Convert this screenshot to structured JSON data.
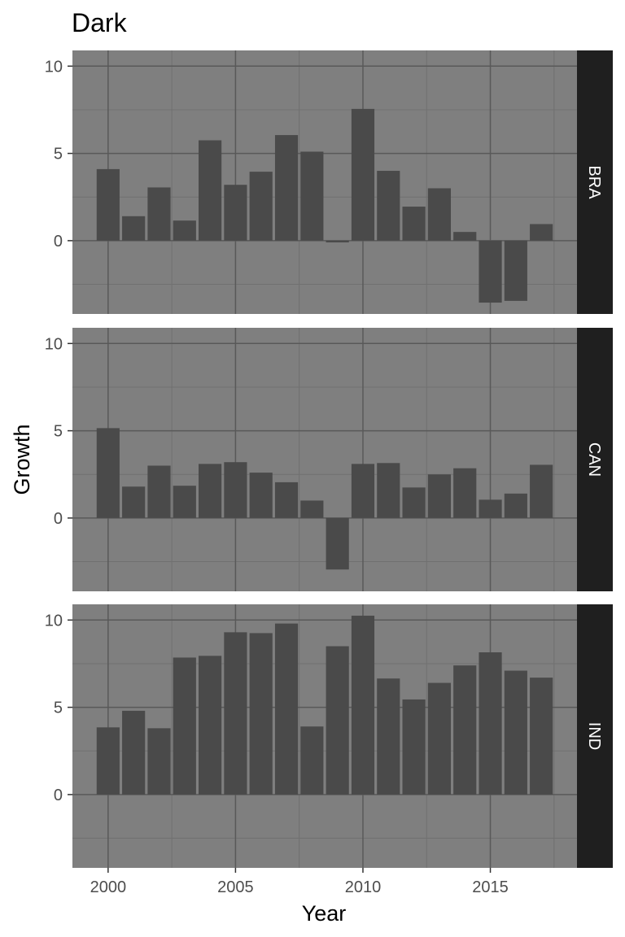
{
  "chart_data": {
    "type": "bar",
    "title": "Dark",
    "xlabel": "Year",
    "ylabel": "Growth",
    "theme": "dark",
    "facet_direction": "rows",
    "years": [
      2000,
      2001,
      2002,
      2003,
      2004,
      2005,
      2006,
      2007,
      2008,
      2009,
      2010,
      2011,
      2012,
      2013,
      2014,
      2015,
      2016,
      2017
    ],
    "x_ticks": [
      2000,
      2005,
      2010,
      2015
    ],
    "y_ticks": [
      0,
      5,
      10
    ],
    "ylim": [
      -4.2,
      10.9
    ],
    "xlim": [
      1998.6,
      2018.4
    ],
    "grid": true,
    "colors": {
      "panel_background": "#7f7f7f",
      "major_grid": "#595959",
      "minor_grid": "#707070",
      "bar_fill": "#4a4a4a",
      "strip_background": "#1f1f1f",
      "strip_text": "#ffffff",
      "tick_text": "#4d4d4d"
    },
    "series": [
      {
        "name": "BRA",
        "values": [
          4.1,
          1.4,
          3.05,
          1.15,
          5.75,
          3.2,
          3.95,
          6.05,
          5.1,
          -0.1,
          7.55,
          4.0,
          1.95,
          3.0,
          0.5,
          -3.55,
          -3.45,
          0.95
        ]
      },
      {
        "name": "CAN",
        "values": [
          5.15,
          1.8,
          3.0,
          1.85,
          3.1,
          3.2,
          2.6,
          2.05,
          1.0,
          -2.95,
          3.1,
          3.15,
          1.75,
          2.5,
          2.85,
          1.05,
          1.4,
          3.05
        ]
      },
      {
        "name": "IND",
        "values": [
          3.85,
          4.8,
          3.8,
          7.85,
          7.95,
          9.3,
          9.25,
          9.8,
          3.9,
          8.5,
          10.25,
          6.65,
          5.45,
          6.4,
          7.4,
          8.15,
          7.1,
          6.7
        ]
      }
    ]
  }
}
